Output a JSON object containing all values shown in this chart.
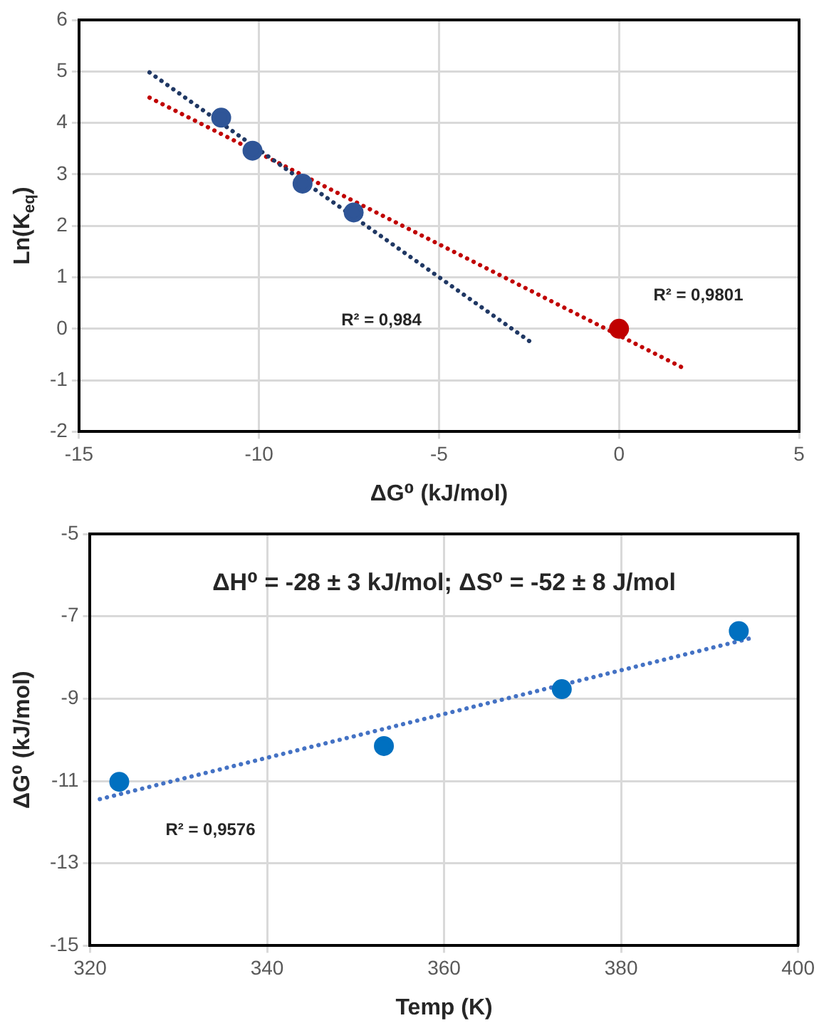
{
  "chart_data": [
    {
      "type": "scatter",
      "xlabel": "ΔG⁰ (kJ/mol)",
      "ylabel": "Ln(K$_{eq}$)",
      "xlim": [
        -15,
        5
      ],
      "xticks": [
        -15,
        -10,
        -5,
        0,
        5
      ],
      "ylim": [
        -2,
        6
      ],
      "yticks": [
        -2,
        -1,
        0,
        1,
        2,
        3,
        4,
        5,
        6
      ],
      "grid": true,
      "series": [
        {
          "type": "scatter",
          "color": "#2f5597",
          "marker": "circle",
          "x": [
            -11.05,
            -10.18,
            -8.79,
            -7.37
          ],
          "values": [
            4.1,
            3.46,
            2.82,
            2.26
          ]
        },
        {
          "type": "line",
          "color": "#203864",
          "marker": "none",
          "line_style": "dotted",
          "x": [
            -13.04,
            -2.47
          ],
          "values": [
            4.98,
            -0.25
          ]
        },
        {
          "type": "scatter",
          "color": "#c00000",
          "marker": "circle",
          "x": [
            0
          ],
          "values": [
            0
          ]
        },
        {
          "type": "line",
          "color": "#c00000",
          "marker": "none",
          "line_style": "dotted",
          "x": [
            -13.04,
            1.89
          ],
          "values": [
            4.49,
            -0.8
          ]
        }
      ],
      "annotations": [
        "R² = 0,984",
        "R² = 0,9801"
      ]
    },
    {
      "type": "scatter",
      "xlabel": "Temp (K)",
      "ylabel": "ΔG⁰ (kJ/mol)",
      "xlim": [
        320,
        400
      ],
      "xticks": [
        320,
        340,
        360,
        380,
        400
      ],
      "ylim": [
        -15,
        -5
      ],
      "yticks": [
        -15,
        -13,
        -11,
        -9,
        -7,
        -5
      ],
      "grid": true,
      "series": [
        {
          "type": "scatter",
          "color": "#0070c0",
          "marker": "circle",
          "x": [
            323.3,
            353.2,
            373.3,
            393.3
          ],
          "values": [
            -11.02,
            -10.15,
            -8.77,
            -7.36
          ]
        },
        {
          "type": "line",
          "color": "#4472c4",
          "marker": "none",
          "line_style": "dotted",
          "x": [
            321.1,
            394.5
          ],
          "values": [
            -11.44,
            -7.54
          ]
        }
      ],
      "annotations": [
        "ΔH⁰ = -28 ± 3 kJ/mol; ΔS⁰ = -52 ± 8 J/mol",
        "R² = 0,9576"
      ]
    }
  ]
}
